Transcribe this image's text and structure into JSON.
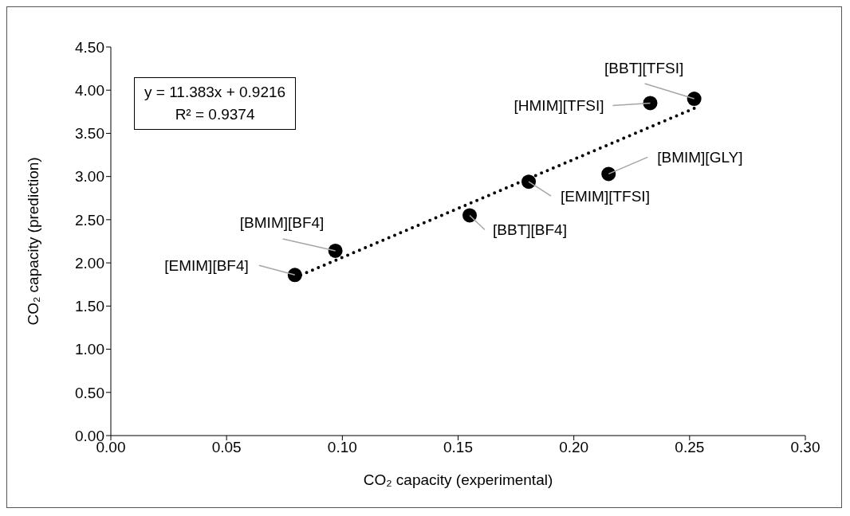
{
  "chart_data": {
    "type": "scatter",
    "xlabel": "CO₂ capacity (experimental)",
    "ylabel": "CO₂ capacity (prediction)",
    "xlim": [
      0,
      0.3
    ],
    "xticks": [
      {
        "value": 0,
        "label": "0.00"
      },
      {
        "value": 0.05,
        "label": "0.05"
      },
      {
        "value": 0.1,
        "label": "0.10"
      },
      {
        "value": 0.15,
        "label": "0.15"
      },
      {
        "value": 0.2,
        "label": "0.20"
      },
      {
        "value": 0.25,
        "label": "0.25"
      },
      {
        "value": 0.3,
        "label": "0.30"
      }
    ],
    "ylim": [
      0,
      4.5
    ],
    "yticks": [
      {
        "value": 0,
        "label": "0.00"
      },
      {
        "value": 0.5,
        "label": "0.50"
      },
      {
        "value": 1,
        "label": "1.00"
      },
      {
        "value": 1.5,
        "label": "1.50"
      },
      {
        "value": 2,
        "label": "2.00"
      },
      {
        "value": 2.5,
        "label": "2.50"
      },
      {
        "value": 3,
        "label": "3.00"
      },
      {
        "value": 3.5,
        "label": "3.50"
      },
      {
        "value": 4,
        "label": "4.00"
      },
      {
        "value": 4.5,
        "label": "4.50"
      }
    ],
    "series": [
      {
        "color": "#000000",
        "marker": "circle",
        "x": [
          0.0795,
          0.097,
          0.155,
          0.1805,
          0.215,
          0.233,
          0.252
        ],
        "values": [
          1.86,
          2.14,
          2.55,
          2.94,
          3.03,
          3.85,
          3.9
        ]
      },
      {
        "type": "line",
        "color": "#000000",
        "marker": "none",
        "line_style": "dotted",
        "x": [
          0.0795,
          0.252
        ],
        "values": [
          1.83,
          3.79
        ]
      }
    ],
    "annotations": [
      {
        "text": "[EMIM][BF4]",
        "x": 0.0795,
        "y": 1.86
      },
      {
        "text": "[BMIM][BF4]",
        "x": 0.097,
        "y": 2.14
      },
      {
        "text": "[BBT][BF4]",
        "x": 0.155,
        "y": 2.55
      },
      {
        "text": "[EMIM][TFSI]",
        "x": 0.1805,
        "y": 2.94
      },
      {
        "text": "[BMIM][GLY]",
        "x": 0.215,
        "y": 3.03
      },
      {
        "text": "[HMIM][TFSI]",
        "x": 0.233,
        "y": 3.85
      },
      {
        "text": "[BBT][TFSI]",
        "x": 0.252,
        "y": 3.9
      },
      "y = 11.383x + 0.9216",
      "R² = 0.9374"
    ],
    "grid": false
  }
}
